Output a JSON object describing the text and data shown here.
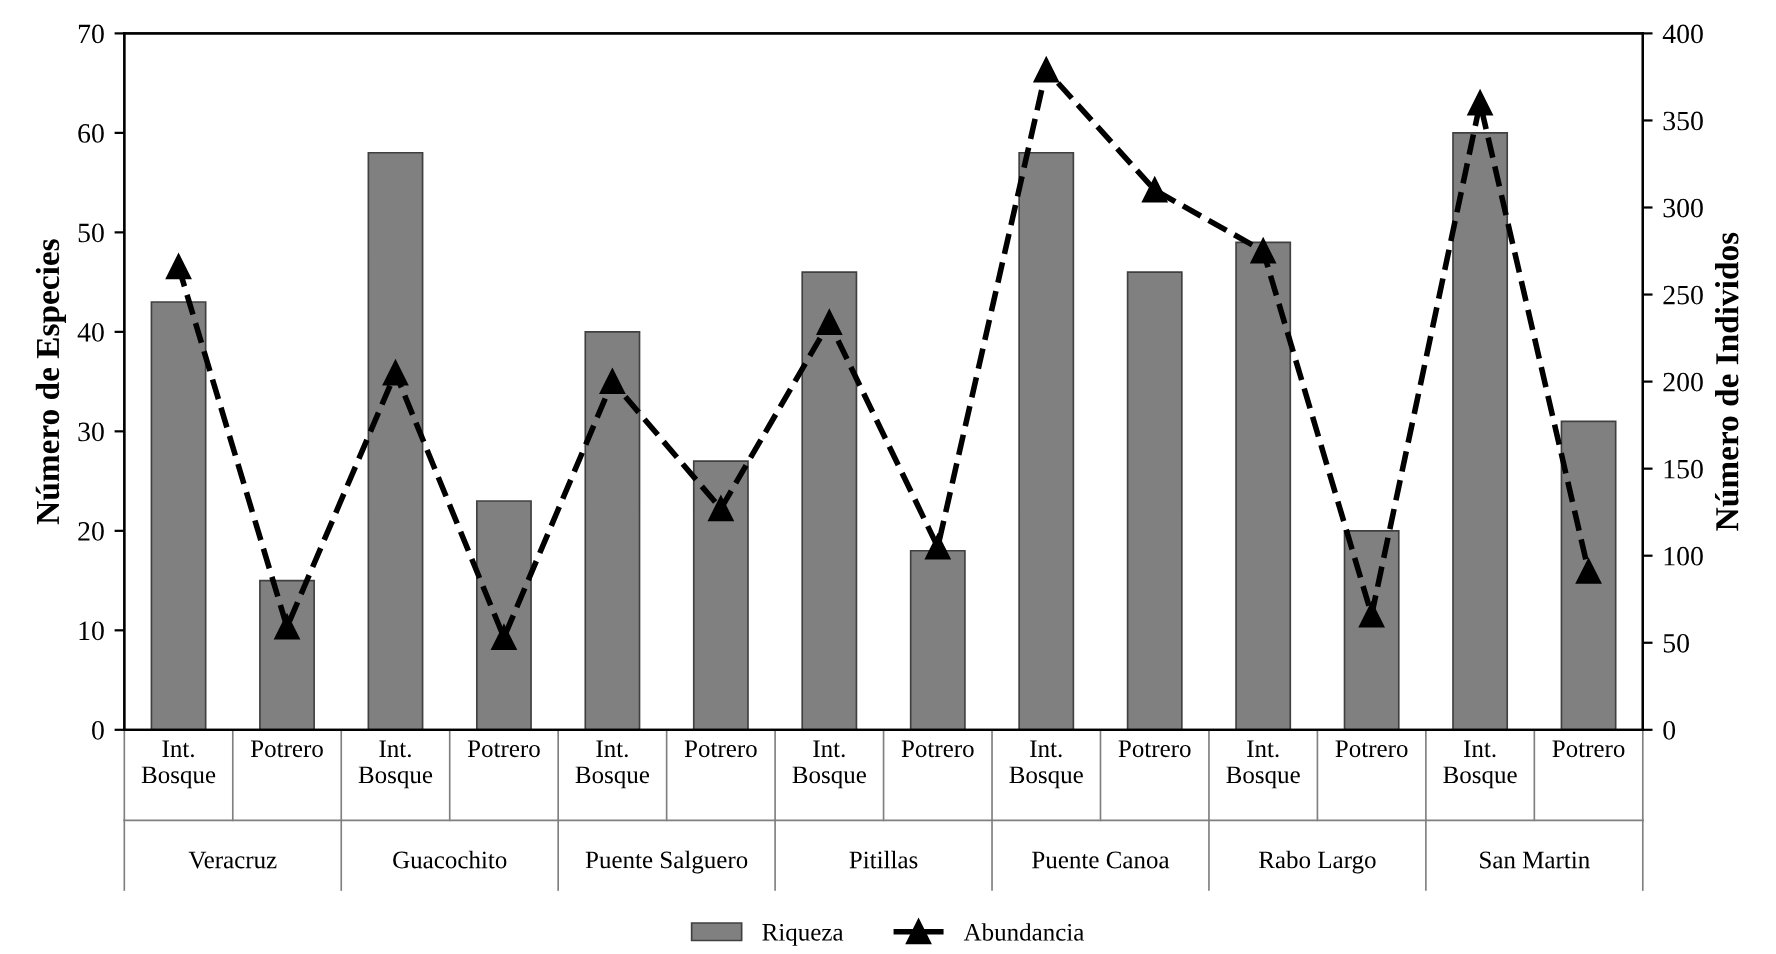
{
  "chart_data": {
    "type": "bar",
    "ylabel": "Número de Especies",
    "y2label": "Número de Individos",
    "categories": [
      "Int.\nBosque",
      "Potrero",
      "Int.\nBosque",
      "Potrero",
      "Int.\nBosque",
      "Potrero",
      "Int.\nBosque",
      "Potrero",
      "Int.\nBosque",
      "Potrero",
      "Int.\nBosque",
      "Potrero",
      "Int.\nBosque",
      "Potrero"
    ],
    "series": [
      {
        "name": "Riqueza",
        "color": "#808080",
        "values": [
          43,
          15,
          58,
          23,
          40,
          27,
          46,
          18,
          58,
          46,
          49,
          20,
          60,
          31
        ]
      },
      {
        "name": "Abundancia",
        "type": "line",
        "axis": "y2",
        "color": "#000000",
        "marker": "triangle",
        "line_style": "dashed",
        "values": [
          266,
          59,
          205,
          53,
          200,
          127,
          234,
          105,
          379,
          310,
          275,
          66,
          360,
          91
        ]
      }
    ],
    "ylim": [
      0,
      70
    ],
    "yticks": [
      0,
      10,
      20,
      30,
      40,
      50,
      60,
      70
    ],
    "y2lim": [
      0,
      400
    ],
    "y2ticks": [
      0,
      50,
      100,
      150,
      200,
      250,
      300,
      350,
      400
    ],
    "annotations": [
      "Veracruz",
      "Guacochito",
      "Puente Salguero",
      "Pitillas",
      "Puente Canoa",
      "Rabo Largo",
      "San Martin"
    ],
    "legend": "bottom",
    "grid": false
  }
}
